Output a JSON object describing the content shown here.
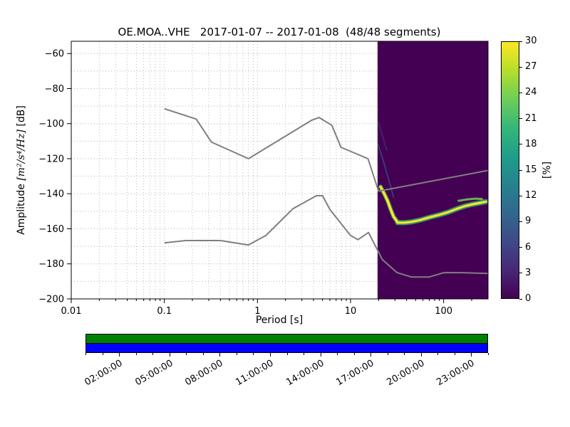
{
  "chart_data": {
    "type": "heatmap",
    "title": "OE.MOA..VHE   2017-01-07 -- 2017-01-08  (48/48 segments)",
    "xlabel": "Period [s]",
    "ylabel": "Amplitude [m²/s⁴/Hz] [dB]",
    "ylabel_parts": {
      "prefix": "Amplitude ",
      "math": "[m²/s⁴/Hz]",
      "suffix": " [dB]"
    },
    "x_scale": "log",
    "xlim": [
      0.01,
      300
    ],
    "ylim_db": [
      -200,
      -53
    ],
    "x_ticks": {
      "values": [
        0.01,
        0.1,
        1,
        10,
        100
      ],
      "labels": [
        "0.01",
        "0.1",
        "1",
        "10",
        "100"
      ]
    },
    "y_ticks": {
      "values": [
        -200,
        -180,
        -160,
        -140,
        -120,
        -100,
        -80,
        -60
      ],
      "labels": [
        "−200",
        "−180",
        "−160",
        "−140",
        "−120",
        "−100",
        "−80",
        "−60"
      ]
    },
    "grid": {
      "on": true,
      "y_step": 10
    },
    "histogram": {
      "period_range": [
        19.5,
        300
      ],
      "background_color": "#440154",
      "coverage_percent_range": [
        0,
        30
      ]
    },
    "noise_models": {
      "color": "#7f7f7f",
      "high": [
        [
          0.1,
          -91.5
        ],
        [
          0.22,
          -97.4
        ],
        [
          0.32,
          -110.5
        ],
        [
          0.8,
          -120.0
        ],
        [
          3.8,
          -98.1
        ],
        [
          4.6,
          -96.5
        ],
        [
          6.3,
          -101.0
        ],
        [
          7.9,
          -113.5
        ],
        [
          15.4,
          -120.0
        ],
        [
          20.0,
          -138.5
        ],
        [
          300.0,
          -126.7
        ]
      ],
      "low": [
        [
          0.1,
          -168.0
        ],
        [
          0.17,
          -166.7
        ],
        [
          0.4,
          -166.7
        ],
        [
          0.8,
          -169.2
        ],
        [
          1.24,
          -163.7
        ],
        [
          2.4,
          -148.6
        ],
        [
          4.3,
          -141.1
        ],
        [
          5.0,
          -141.1
        ],
        [
          6.0,
          -149.0
        ],
        [
          10.0,
          -163.8
        ],
        [
          12.0,
          -166.2
        ],
        [
          15.6,
          -162.1
        ],
        [
          21.9,
          -177.5
        ],
        [
          31.6,
          -185.0
        ],
        [
          45.0,
          -187.5
        ],
        [
          70.0,
          -187.5
        ],
        [
          101.0,
          -185.0
        ],
        [
          154.0,
          -185.0
        ],
        [
          300.0,
          -185.5
        ]
      ]
    },
    "streaks": [
      {
        "name": "descending-fringe",
        "color": "#35b779",
        "width": 6,
        "opacity": 0.7,
        "points": [
          [
            21,
            -136
          ],
          [
            23,
            -140
          ],
          [
            25,
            -144
          ],
          [
            27,
            -149
          ],
          [
            29,
            -153
          ],
          [
            32,
            -156
          ]
        ]
      },
      {
        "name": "main-fringe",
        "color": "#35b779",
        "width": 7,
        "opacity": 0.8,
        "points": [
          [
            32,
            -156.5
          ],
          [
            38,
            -156.5
          ],
          [
            46,
            -156
          ],
          [
            56,
            -155
          ],
          [
            70,
            -153.5
          ],
          [
            90,
            -152
          ],
          [
            112,
            -150.5
          ],
          [
            140,
            -148.5
          ],
          [
            170,
            -147
          ],
          [
            205,
            -146
          ],
          [
            245,
            -145.2
          ],
          [
            285,
            -144.5
          ]
        ]
      },
      {
        "name": "descending-core",
        "color": "#fde725",
        "width": 3.5,
        "opacity": 1,
        "points": [
          [
            21,
            -136
          ],
          [
            23,
            -140
          ],
          [
            25,
            -144
          ],
          [
            27,
            -149
          ],
          [
            29,
            -153
          ],
          [
            31.5,
            -155.8
          ]
        ]
      },
      {
        "name": "main-core",
        "color": "#fde725",
        "width": 3,
        "opacity": 1,
        "points": [
          [
            32,
            -156.5
          ],
          [
            38,
            -156.5
          ],
          [
            46,
            -156
          ],
          [
            56,
            -155
          ],
          [
            70,
            -153.5
          ],
          [
            90,
            -152
          ],
          [
            112,
            -150.5
          ],
          [
            140,
            -148.5
          ],
          [
            170,
            -147
          ],
          [
            205,
            -146
          ],
          [
            245,
            -145.2
          ],
          [
            285,
            -144.5
          ]
        ]
      },
      {
        "name": "upper-secondary",
        "color": "#6ece58",
        "width": 3,
        "opacity": 0.85,
        "points": [
          [
            145,
            -144
          ],
          [
            180,
            -143.2
          ],
          [
            220,
            -142.8
          ],
          [
            258,
            -143
          ]
        ]
      },
      {
        "name": "artifact-teal",
        "color": "#31688e",
        "width": 2,
        "opacity": 0.55,
        "points": [
          [
            19.8,
            -112
          ],
          [
            23,
            -123
          ],
          [
            26,
            -133
          ],
          [
            29,
            -142
          ]
        ]
      },
      {
        "name": "artifact-blue",
        "color": "#3e4a89",
        "width": 2,
        "opacity": 0.45,
        "points": [
          [
            19.8,
            -99
          ],
          [
            22,
            -107
          ],
          [
            24.5,
            -115
          ]
        ]
      }
    ],
    "colorbar": {
      "label": "[%]",
      "ticks": [
        0,
        3,
        6,
        9,
        12,
        15,
        18,
        21,
        24,
        27,
        30
      ],
      "tick_labels": [
        "0",
        "3",
        "6",
        "9",
        "12",
        "15",
        "18",
        "21",
        "24",
        "27",
        "30"
      ],
      "colors": [
        "#440154",
        "#482878",
        "#3e4a89",
        "#31688e",
        "#26828e",
        "#1f9e89",
        "#35b779",
        "#6ece58",
        "#b5de2b",
        "#fde725"
      ]
    }
  },
  "coverage_bar": {
    "top_strip_color": "#008000",
    "bottom_strip_color": "#0000ff",
    "time_span_hours": 24,
    "tick_labels": [
      {
        "hour": 2,
        "label": "02:00:00"
      },
      {
        "hour": 5,
        "label": "05:00:00"
      },
      {
        "hour": 8,
        "label": "08:00:00"
      },
      {
        "hour": 11,
        "label": "11:00:00"
      },
      {
        "hour": 14,
        "label": "14:00:00"
      },
      {
        "hour": 17,
        "label": "17:00:00"
      },
      {
        "hour": 20,
        "label": "20:00:00"
      },
      {
        "hour": 23,
        "label": "23:00:00"
      }
    ]
  }
}
